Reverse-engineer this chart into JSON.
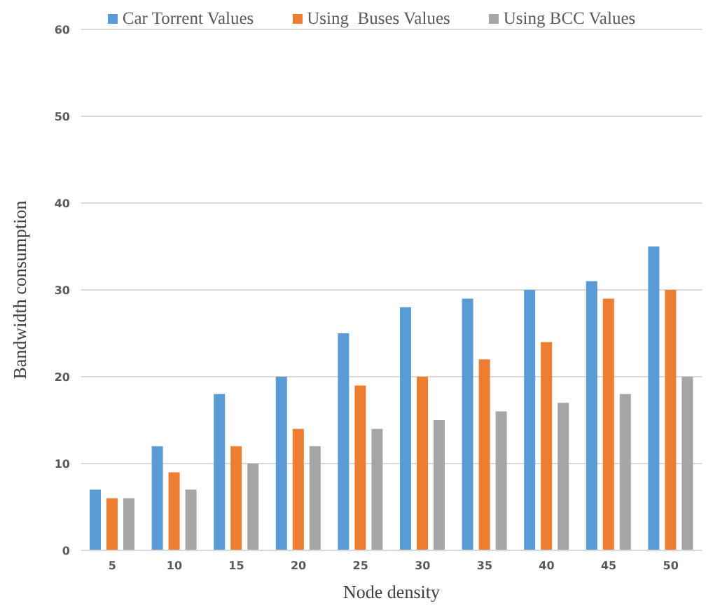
{
  "chart_data": {
    "type": "bar",
    "xlabel": "Node density",
    "ylabel": "Bandwidth consumption",
    "categories": [
      "5",
      "10",
      "15",
      "20",
      "25",
      "30",
      "35",
      "40",
      "45",
      "50"
    ],
    "series": [
      {
        "name": "Car Torrent Values",
        "color": "#5b9bd5",
        "values": [
          7,
          12,
          18,
          20,
          25,
          28,
          29,
          30,
          31,
          35
        ]
      },
      {
        "name": "Using  Buses Values",
        "color": "#ed7d31",
        "values": [
          6,
          9,
          12,
          14,
          19,
          20,
          22,
          24,
          29,
          30
        ]
      },
      {
        "name": "Using BCC Values",
        "color": "#a5a5a5",
        "values": [
          6,
          7,
          10,
          12,
          14,
          15,
          16,
          17,
          18,
          20
        ]
      }
    ],
    "ylim": [
      0,
      60
    ],
    "yticks": [
      0,
      10,
      20,
      30,
      40,
      50,
      60
    ],
    "grid": "y",
    "legend": "top"
  }
}
